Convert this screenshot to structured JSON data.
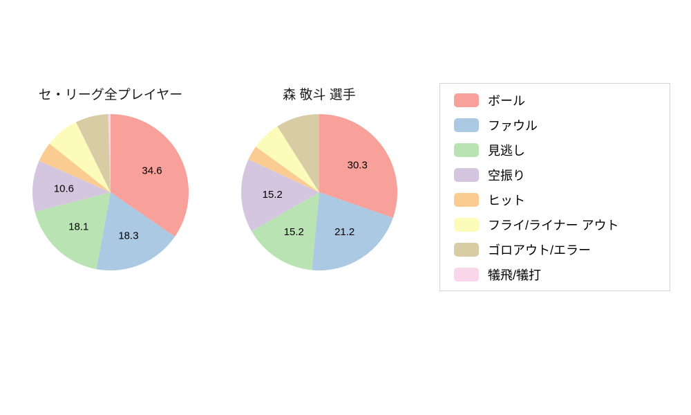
{
  "chart_data": {
    "type": "pie",
    "categories": [
      "ボール",
      "ファウル",
      "見逃し",
      "空振り",
      "ヒット",
      "フライ/ライナー アウト",
      "ゴロアウト/エラー",
      "犠飛/犠打"
    ],
    "colors": [
      "#F8A09A",
      "#ABC9E2",
      "#B9E3B2",
      "#D5C6E0",
      "#FACC92",
      "#FDFBB9",
      "#D7CCA3",
      "#FAD6EB"
    ],
    "series": [
      {
        "name": "セ・リーグ全プレイヤー",
        "values": [
          34.6,
          18.3,
          18.1,
          10.6,
          4.1,
          7.0,
          6.8,
          0.5
        ]
      },
      {
        "name": "森 敬斗 選手",
        "values": [
          30.3,
          21.2,
          15.2,
          15.2,
          3.0,
          6.1,
          9.0,
          0
        ]
      }
    ],
    "shown_labels": [
      [
        "34.6",
        "18.3",
        "18.1",
        "10.6"
      ],
      [
        "30.3",
        "21.2",
        "15.2",
        "15.2"
      ]
    ],
    "label_min_pct": 10,
    "start_angle": "top",
    "direction": "clockwise",
    "legend_position": "right",
    "background": "#ffffff"
  }
}
